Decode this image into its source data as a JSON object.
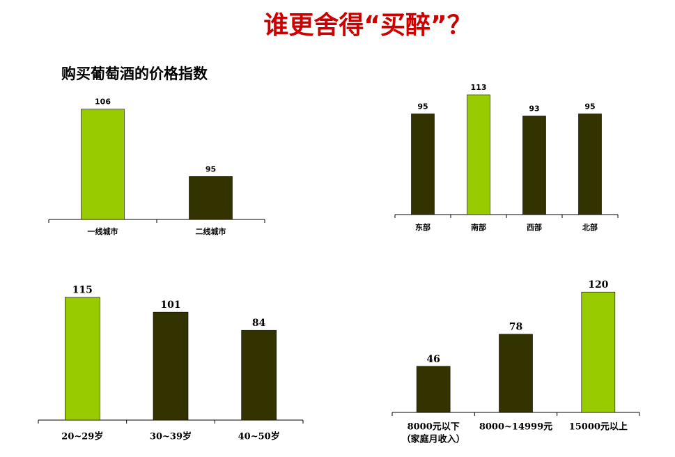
{
  "title": "谁更舍得“买醉”？",
  "subtitle": "购买葡萄酒的价格指数",
  "chart_data": [
    {
      "type": "bar",
      "categories": [
        "一线城市",
        "二线城市"
      ],
      "values": [
        106,
        95
      ],
      "colors": [
        "#99cc00",
        "#333300"
      ],
      "ylim": [
        88,
        108
      ]
    },
    {
      "type": "bar",
      "categories": [
        "东部",
        "南部",
        "西部",
        "北部"
      ],
      "values": [
        95,
        113,
        93,
        95
      ],
      "colors": [
        "#333300",
        "#99cc00",
        "#333300",
        "#333300"
      ],
      "ylim": [
        0,
        115
      ]
    },
    {
      "type": "bar",
      "categories": [
        "20~29岁",
        "30~39岁",
        "40~50岁"
      ],
      "values": [
        115,
        101,
        84
      ],
      "colors": [
        "#99cc00",
        "#333300",
        "#333300"
      ],
      "ylim": [
        0,
        120
      ]
    },
    {
      "type": "bar",
      "categories": [
        "8000元以下",
        "8000~14999元",
        "15000元以上"
      ],
      "annotation": "（家庭月收入）",
      "values": [
        46,
        78,
        120
      ],
      "colors": [
        "#333300",
        "#333300",
        "#99cc00"
      ],
      "ylim": [
        0,
        125
      ]
    }
  ]
}
